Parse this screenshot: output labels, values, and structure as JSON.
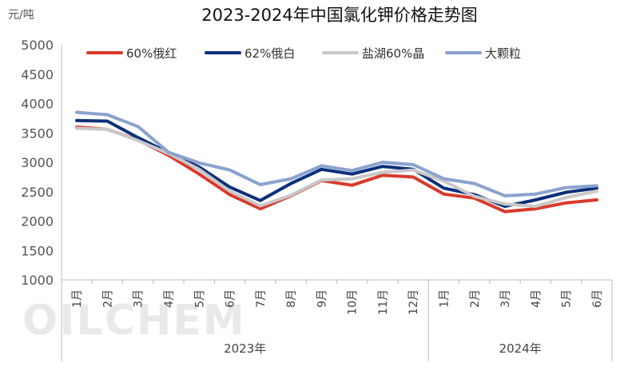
{
  "chart_data": {
    "type": "line",
    "title": "2023-2024年中国氯化钾价格走势图",
    "unit_label": "元/吨",
    "watermark": "OILCHEM",
    "categories": [
      "1月",
      "2月",
      "3月",
      "4月",
      "5月",
      "6月",
      "7月",
      "8月",
      "9月",
      "10月",
      "11月",
      "12月",
      "1月",
      "2月",
      "3月",
      "4月",
      "5月",
      "6月"
    ],
    "groups": [
      {
        "label": "2023年",
        "count": 12
      },
      {
        "label": "2024年",
        "count": 6
      }
    ],
    "ylim": [
      1000,
      5000
    ],
    "yticks": [
      1000,
      1500,
      2000,
      2500,
      3000,
      3500,
      4000,
      4500,
      5000
    ],
    "grid": false,
    "legend_position": "top",
    "series": [
      {
        "name": "60%俄红",
        "color": "#d93a2b",
        "values": [
          3600,
          3560,
          3380,
          3120,
          2800,
          2450,
          2210,
          2430,
          2690,
          2610,
          2780,
          2750,
          2460,
          2390,
          2160,
          2210,
          2310,
          2360
        ]
      },
      {
        "name": "62%俄白",
        "color": "#0b2f7a",
        "values": [
          3710,
          3700,
          3420,
          3160,
          2920,
          2580,
          2350,
          2640,
          2880,
          2800,
          2930,
          2880,
          2560,
          2450,
          2250,
          2360,
          2490,
          2560
        ]
      },
      {
        "name": "盐湖60%晶",
        "color": "#c8c8c8",
        "values": [
          3580,
          3560,
          3370,
          3150,
          2880,
          2510,
          2260,
          2440,
          2700,
          2720,
          2830,
          2870,
          2680,
          2420,
          2290,
          2250,
          2400,
          2510
        ]
      },
      {
        "name": "大颗粒",
        "color": "#8aa2cf",
        "values": [
          3850,
          3810,
          3610,
          3170,
          2990,
          2870,
          2620,
          2720,
          2940,
          2860,
          3000,
          2960,
          2720,
          2640,
          2430,
          2460,
          2570,
          2600
        ]
      }
    ]
  }
}
